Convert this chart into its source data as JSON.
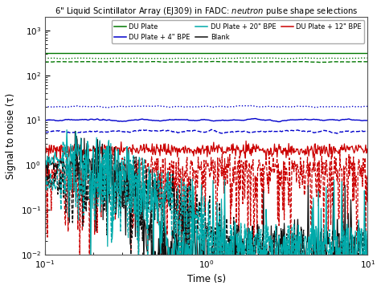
{
  "title_prefix": "6\" Liquid Scintillator Array (EJ309) in FADC: ",
  "title_suffix": " pulse shape selections",
  "title_italic": "neutron",
  "xlabel": "Time (s)",
  "ylabel": "Signal to noise (τ)",
  "xlim": [
    0.1,
    10.0
  ],
  "ylim": [
    0.01,
    2000.0
  ],
  "green": "#007700",
  "blue": "#0000cc",
  "red": "#cc0000",
  "black": "#111111",
  "cyan": "#00aaaa",
  "figsize": [
    4.74,
    3.61
  ],
  "dpi": 100,
  "legend_labels": [
    "DU Plate",
    "DU Plate + 4\" BPE",
    "DU Plate + 20\" BPE",
    "Blank",
    "DU Plate + 12\" BPE"
  ]
}
